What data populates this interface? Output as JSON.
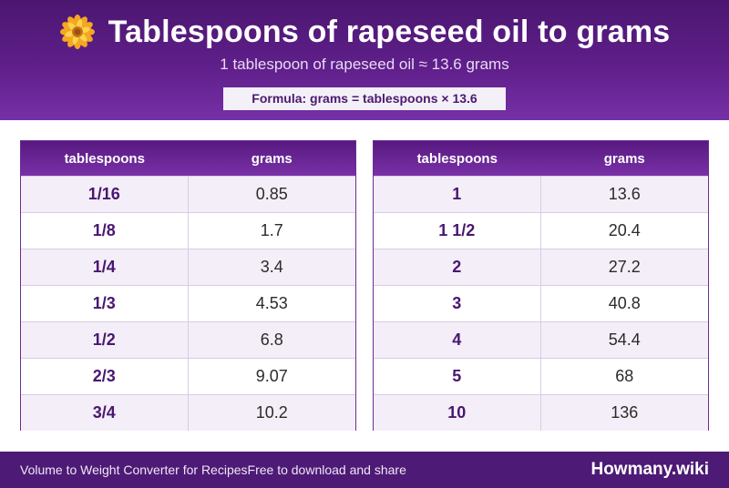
{
  "header": {
    "icon": "flower-icon",
    "title": "Tablespoons of rapeseed oil to grams",
    "subtitle": "1 tablespoon of rapeseed oil ≈ 13.6 grams",
    "formula": "Formula: grams = tablespoons × 13.6"
  },
  "tables": {
    "left": {
      "headers": [
        "tablespoons",
        "grams"
      ],
      "rows": [
        {
          "tbsp": "1/16",
          "grams": "0.85"
        },
        {
          "tbsp": "1/8",
          "grams": "1.7"
        },
        {
          "tbsp": "1/4",
          "grams": "3.4"
        },
        {
          "tbsp": "1/3",
          "grams": "4.53"
        },
        {
          "tbsp": "1/2",
          "grams": "6.8"
        },
        {
          "tbsp": "2/3",
          "grams": "9.07"
        },
        {
          "tbsp": "3/4",
          "grams": "10.2"
        }
      ]
    },
    "right": {
      "headers": [
        "tablespoons",
        "grams"
      ],
      "rows": [
        {
          "tbsp": "1",
          "grams": "13.6"
        },
        {
          "tbsp": "1 1/2",
          "grams": "20.4"
        },
        {
          "tbsp": "2",
          "grams": "27.2"
        },
        {
          "tbsp": "3",
          "grams": "40.8"
        },
        {
          "tbsp": "4",
          "grams": "54.4"
        },
        {
          "tbsp": "5",
          "grams": "68"
        },
        {
          "tbsp": "10",
          "grams": "136"
        }
      ]
    }
  },
  "footer": {
    "left": "Volume to Weight Converter for Recipes",
    "middle": "Free to download and share",
    "brand": "Howmany.wiki"
  },
  "colors": {
    "header_bg": "#5f1f8a",
    "accent": "#4a1670",
    "row_alt": "#f3eef8",
    "footer_bg": "#4d1a75"
  }
}
